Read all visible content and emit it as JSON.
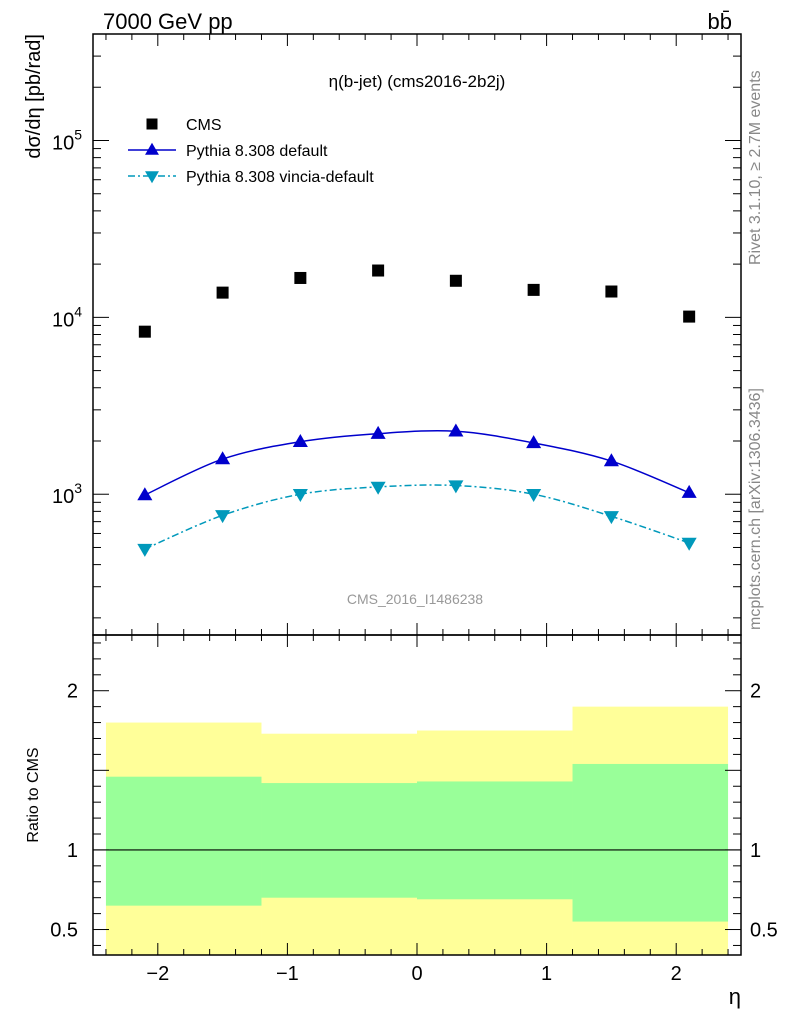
{
  "header": {
    "energy_label": "7000 GeV pp",
    "process_label": "bb̄"
  },
  "side_labels": {
    "rivet": "Rivet 3.1.10, ≥ 2.7M events",
    "mcplots": "mcplots.cern.ch [arXiv:1306.3436]"
  },
  "watermark": "CMS_2016_I1486238",
  "chart_data": [
    {
      "type": "scatter",
      "title": "η(b-jet) (cms2016-2b2j)",
      "ylabel": "dσ/dη [pb/rad]",
      "xlabel": "",
      "yscale": "log",
      "ylim": [
        160,
        400000
      ],
      "xlim": [
        -2.5,
        2.5
      ],
      "yticks": [
        {
          "value": 1000,
          "base": "10",
          "exp": "3"
        },
        {
          "value": 10000,
          "base": "10",
          "exp": "4"
        },
        {
          "value": 100000,
          "base": "10",
          "exp": "5"
        }
      ],
      "legend_position": "top-left",
      "series": [
        {
          "name": "CMS",
          "style": "data-square",
          "color": "#000000",
          "x": [
            -2.1,
            -1.5,
            -0.9,
            -0.3,
            0.3,
            0.9,
            1.5,
            2.1
          ],
          "values": [
            8300,
            13800,
            16700,
            18400,
            16100,
            14300,
            14000,
            10100
          ]
        },
        {
          "name": "Pythia 8.308 default",
          "style": "line-triangle-up",
          "color": "#0000cc",
          "x": [
            -2.1,
            -1.5,
            -0.9,
            -0.3,
            0.3,
            0.9,
            1.5,
            2.1
          ],
          "values": [
            990,
            1580,
            1980,
            2200,
            2270,
            1950,
            1540,
            1020
          ]
        },
        {
          "name": "Pythia 8.308 vincia-default",
          "style": "dashdot-triangle-down",
          "color": "#0099bb",
          "x": [
            -2.1,
            -1.5,
            -0.9,
            -0.3,
            0.3,
            0.9,
            1.5,
            2.1
          ],
          "values": [
            490,
            760,
            1000,
            1100,
            1120,
            1000,
            750,
            530
          ]
        }
      ]
    },
    {
      "type": "area",
      "ylabel": "Ratio to CMS",
      "xlabel": "η",
      "ylim": [
        0.34,
        2.35
      ],
      "xlim": [
        -2.5,
        2.5
      ],
      "yticks": [
        0.5,
        1,
        2
      ],
      "xticks": [
        -2,
        -1,
        0,
        1,
        2
      ],
      "reference_line": 1,
      "bands": {
        "edges": [
          -2.4,
          -1.2,
          0,
          1.2,
          2.4
        ],
        "outer": {
          "color": "#ffff99",
          "upper": [
            1.8,
            1.73,
            1.75,
            1.9
          ],
          "lower": [
            0.34,
            0.34,
            0.34,
            0.34
          ]
        },
        "inner": {
          "color": "#99ff99",
          "upper": [
            1.46,
            1.42,
            1.43,
            1.54
          ],
          "lower": [
            0.65,
            0.7,
            0.69,
            0.55
          ]
        }
      }
    }
  ]
}
